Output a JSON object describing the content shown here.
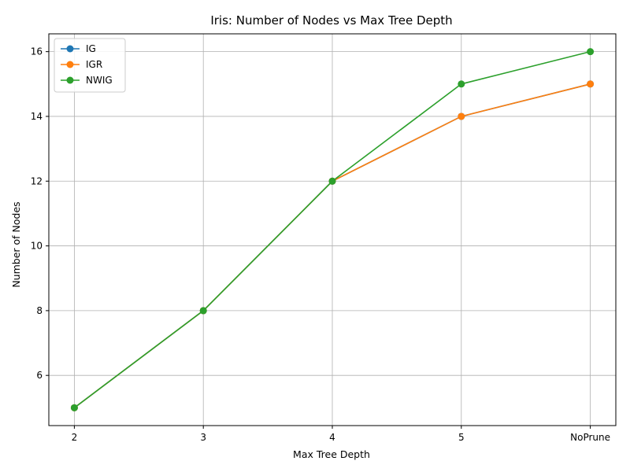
{
  "chart_data": {
    "type": "line",
    "title": "Iris: Number of Nodes vs Max Tree Depth",
    "xlabel": "Max Tree Depth",
    "ylabel": "Number of Nodes",
    "categories": [
      "2",
      "3",
      "4",
      "5",
      "NoPrune"
    ],
    "ylim": [
      4.45,
      16.55
    ],
    "yticks": [
      6,
      8,
      10,
      12,
      14,
      16
    ],
    "grid": true,
    "legend_position": "top-left",
    "series": [
      {
        "name": "IG",
        "color": "#1f77b4",
        "values": [
          5,
          8,
          12,
          14,
          15
        ]
      },
      {
        "name": "IGR",
        "color": "#ff7f0e",
        "values": [
          5,
          8,
          12,
          14,
          15
        ]
      },
      {
        "name": "NWIG",
        "color": "#2ca02c",
        "values": [
          5,
          8,
          12,
          15,
          16
        ]
      }
    ]
  }
}
